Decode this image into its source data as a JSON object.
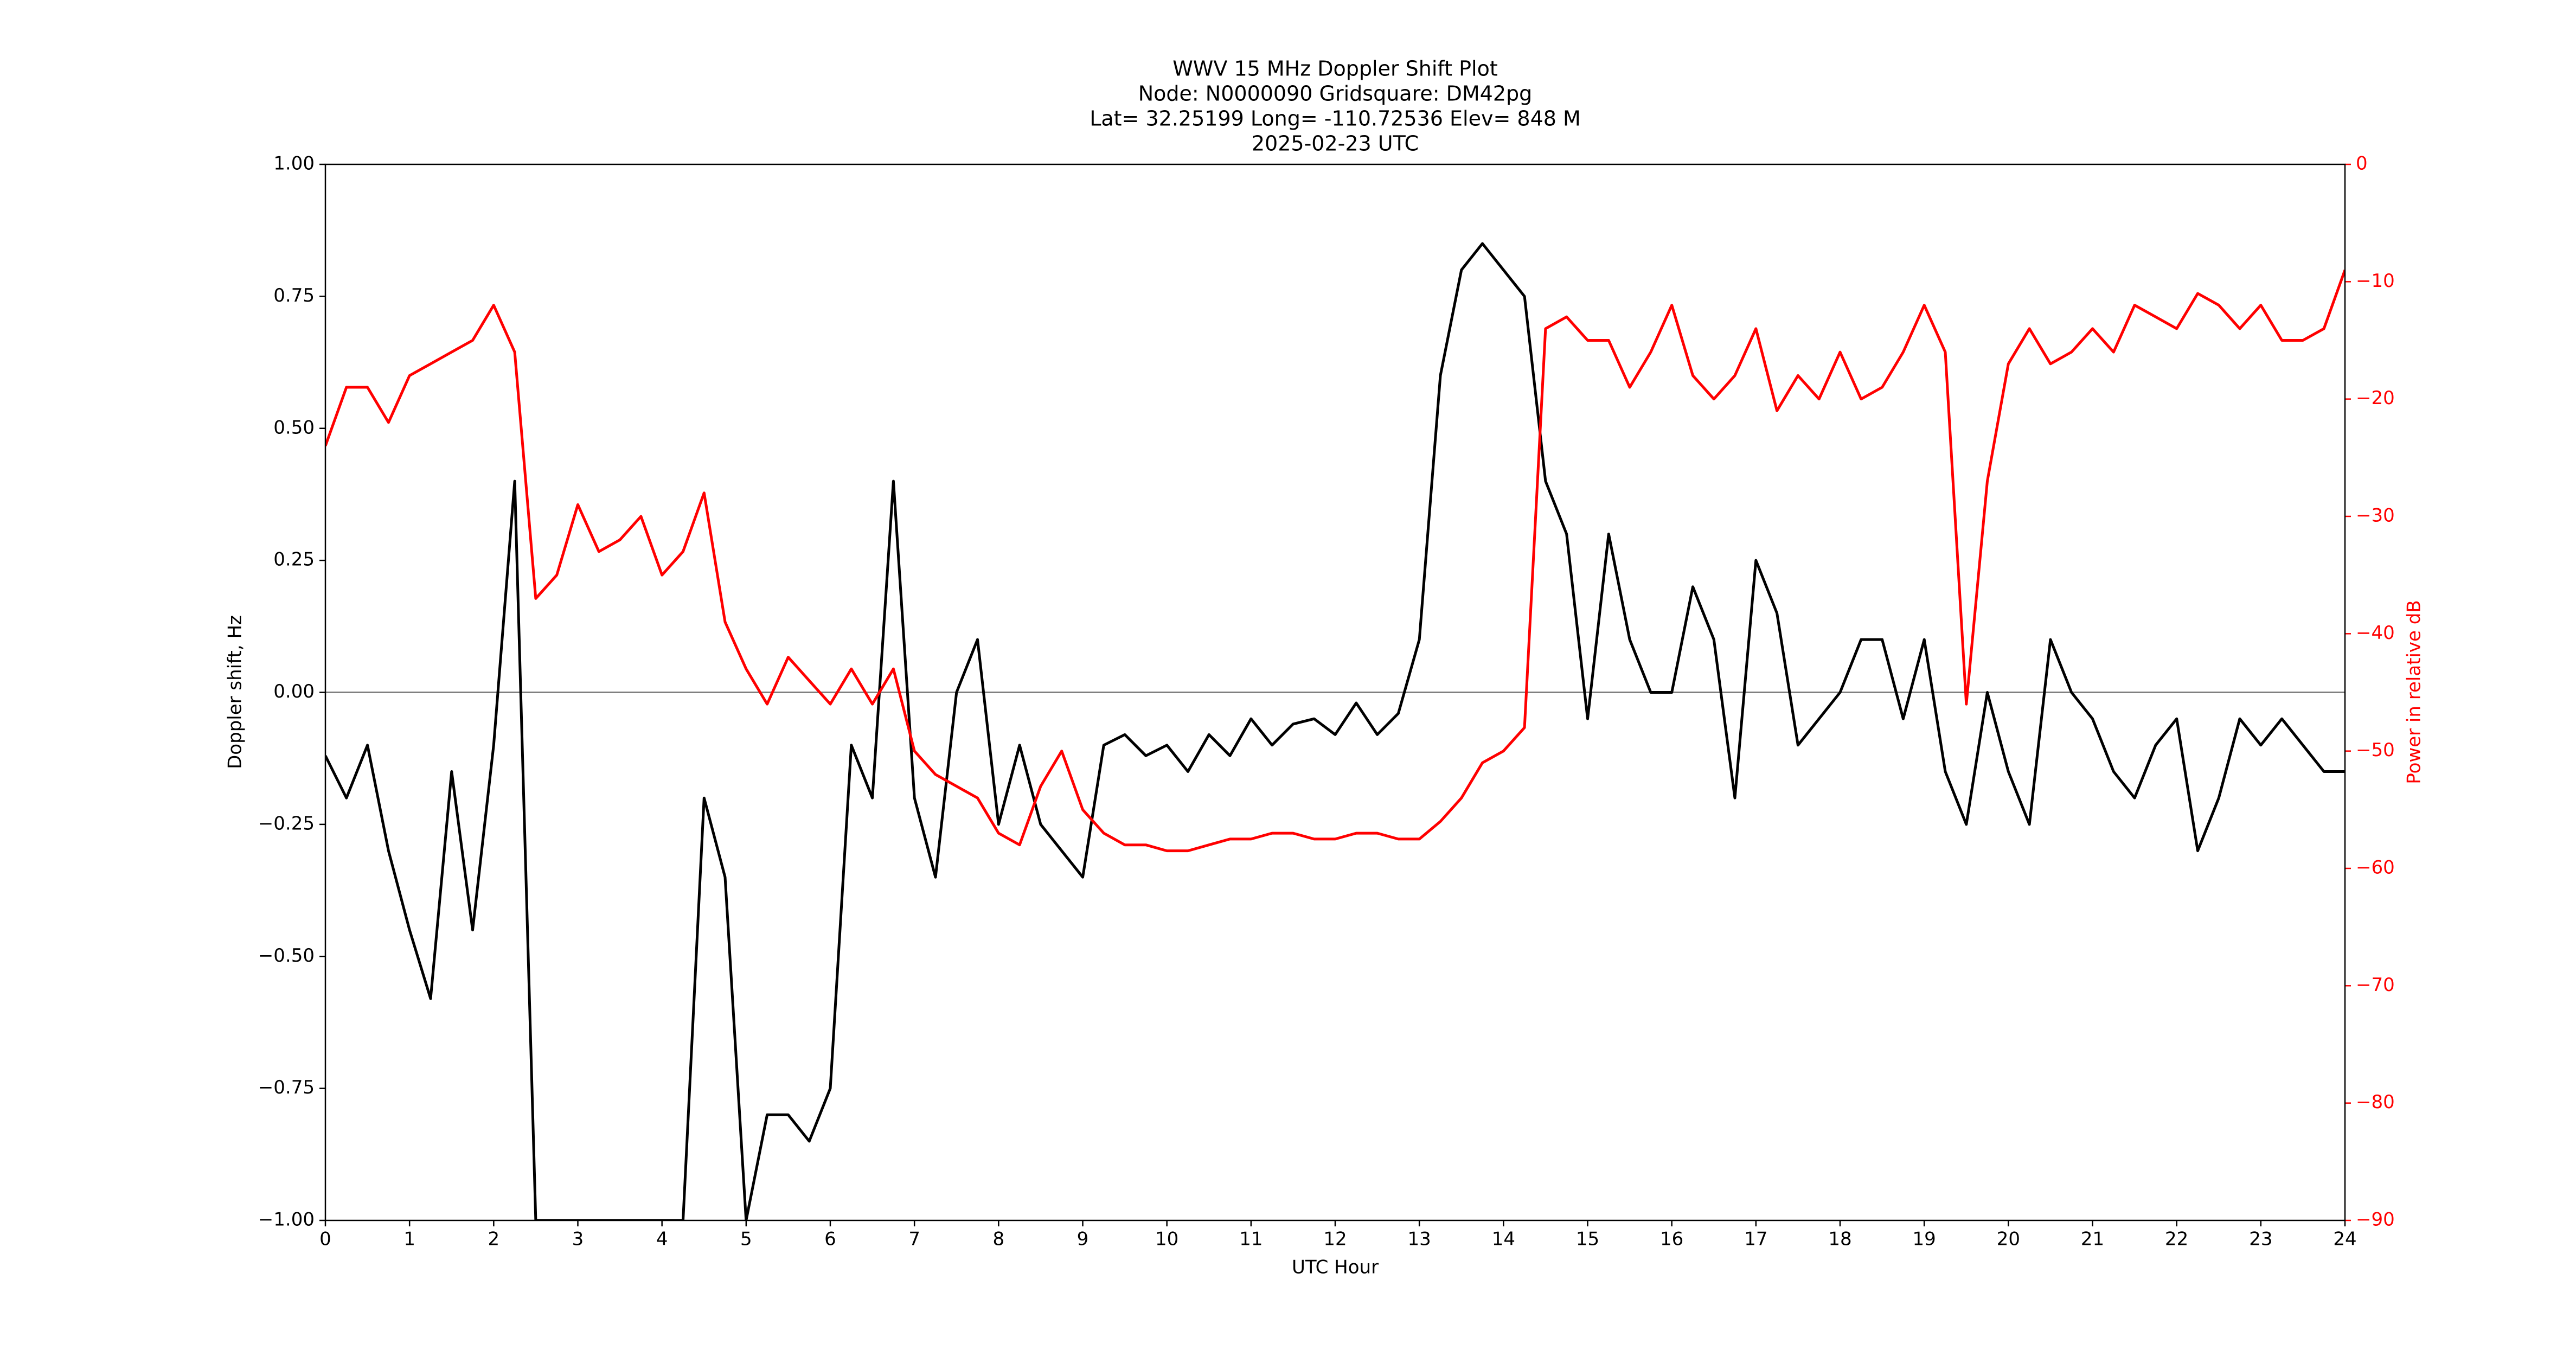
{
  "chart_data": {
    "type": "line",
    "title": [
      "WWV 15 MHz Doppler Shift Plot",
      "Node:  N0000090     Gridsquare:  DM42pg",
      "Lat= 32.25199    Long= -110.72536    Elev= 848 M",
      "2025-02-23  UTC"
    ],
    "x_label": "UTC Hour",
    "y_label": "Doppler shift, Hz",
    "y2_label": "Power in relative dB",
    "x": [
      0,
      0.25,
      0.5,
      0.75,
      1,
      1.25,
      1.5,
      1.75,
      2,
      2.25,
      2.5,
      2.75,
      3,
      3.25,
      3.5,
      3.75,
      4,
      4.25,
      4.5,
      4.75,
      5,
      5.25,
      5.5,
      5.75,
      6,
      6.25,
      6.5,
      6.75,
      7,
      7.25,
      7.5,
      7.75,
      8,
      8.25,
      8.5,
      8.75,
      9,
      9.25,
      9.5,
      9.75,
      10,
      10.25,
      10.5,
      10.75,
      11,
      11.25,
      11.5,
      11.75,
      12,
      12.25,
      12.5,
      12.75,
      13,
      13.25,
      13.5,
      13.75,
      14,
      14.25,
      14.5,
      14.75,
      15,
      15.25,
      15.5,
      15.75,
      16,
      16.25,
      16.5,
      16.75,
      17,
      17.25,
      17.5,
      17.75,
      18,
      18.25,
      18.5,
      18.75,
      19,
      19.25,
      19.5,
      19.75,
      20,
      20.25,
      20.5,
      20.75,
      21,
      21.25,
      21.5,
      21.75,
      22,
      22.25,
      22.5,
      22.75,
      23,
      23.25,
      23.5,
      23.75,
      24
    ],
    "series": [
      {
        "name": "Doppler shift",
        "color": "#000000",
        "values": [
          -0.12,
          -0.2,
          -0.1,
          -0.3,
          -0.45,
          -0.58,
          -0.15,
          -0.45,
          -0.1,
          0.4,
          -1.0,
          -1.0,
          -1.0,
          -1.0,
          -1.0,
          -1.0,
          -1.0,
          -1.0,
          -0.2,
          -0.35,
          -1.0,
          -0.8,
          -0.8,
          -0.85,
          -0.75,
          -0.1,
          -0.2,
          0.4,
          -0.2,
          -0.35,
          0.0,
          0.1,
          -0.25,
          -0.1,
          -0.25,
          -0.3,
          -0.35,
          -0.1,
          -0.08,
          -0.12,
          -0.1,
          -0.15,
          -0.08,
          -0.12,
          -0.05,
          -0.1,
          -0.06,
          -0.05,
          -0.08,
          -0.02,
          -0.08,
          -0.04,
          0.1,
          0.6,
          0.8,
          0.85,
          0.8,
          0.75,
          0.4,
          0.3,
          -0.05,
          0.3,
          0.1,
          0.0,
          0.0,
          0.2,
          0.1,
          -0.2,
          0.25,
          0.15,
          -0.1,
          -0.05,
          0.0,
          0.1,
          0.1,
          -0.05,
          0.1,
          -0.15,
          -0.25,
          0.0,
          -0.15,
          -0.25,
          0.1,
          0.0,
          -0.05,
          -0.15,
          -0.2,
          -0.1,
          -0.05,
          -0.3,
          -0.2,
          -0.05,
          -0.1,
          -0.05,
          -0.1,
          -0.15,
          -0.15
        ]
      },
      {
        "name": "Power",
        "color": "#ff0000",
        "axis": "y2",
        "values": [
          -24,
          -19,
          -19,
          -22,
          -18,
          -17,
          -16,
          -15,
          -12,
          -16,
          -37,
          -35,
          -29,
          -33,
          -32,
          -30,
          -35,
          -33,
          -28,
          -39,
          -43,
          -46,
          -42,
          -44,
          -46,
          -43,
          -46,
          -43,
          -50,
          -52,
          -53,
          -54,
          -57,
          -58,
          -53,
          -50,
          -55,
          -57,
          -58,
          -58,
          -58.5,
          -58.5,
          -58,
          -57.5,
          -57.5,
          -57,
          -57,
          -57.5,
          -57.5,
          -57,
          -57,
          -57.5,
          -57.5,
          -56,
          -54,
          -51,
          -50,
          -48,
          -14,
          -13,
          -15,
          -15,
          -19,
          -16,
          -12,
          -18,
          -20,
          -18,
          -14,
          -21,
          -18,
          -20,
          -16,
          -20,
          -19,
          -16,
          -12,
          -16,
          -46,
          -27,
          -17,
          -14,
          -17,
          -16,
          -14,
          -16,
          -12,
          -13,
          -14,
          -11,
          -12,
          -14,
          -12,
          -15,
          -15,
          -14,
          -9
        ]
      }
    ],
    "reference_line": 0,
    "xlim": [
      0,
      24
    ],
    "xticks": [
      0,
      1,
      2,
      3,
      4,
      5,
      6,
      7,
      8,
      9,
      10,
      11,
      12,
      13,
      14,
      15,
      16,
      17,
      18,
      19,
      20,
      21,
      22,
      23,
      24
    ],
    "ylim": [
      -1,
      1
    ],
    "yticks": [
      {
        "value": -1,
        "label": "−1.00"
      },
      {
        "value": -0.75,
        "label": "−0.75"
      },
      {
        "value": -0.5,
        "label": "−0.50"
      },
      {
        "value": -0.25,
        "label": "−0.25"
      },
      {
        "value": 0,
        "label": "0.00"
      },
      {
        "value": 0.25,
        "label": "0.25"
      },
      {
        "value": 0.5,
        "label": "0.50"
      },
      {
        "value": 0.75,
        "label": "0.75"
      },
      {
        "value": 1,
        "label": "1.00"
      }
    ],
    "y2lim": [
      -90,
      0
    ],
    "y2ticks": [
      {
        "value": -90,
        "label": "−90"
      },
      {
        "value": -80,
        "label": "−80"
      },
      {
        "value": -70,
        "label": "−70"
      },
      {
        "value": -60,
        "label": "−60"
      },
      {
        "value": -50,
        "label": "−50"
      },
      {
        "value": -40,
        "label": "−40"
      },
      {
        "value": -30,
        "label": "−30"
      },
      {
        "value": -20,
        "label": "−20"
      },
      {
        "value": -10,
        "label": "−10"
      },
      0
    ],
    "y2_color": "#ff0000"
  }
}
